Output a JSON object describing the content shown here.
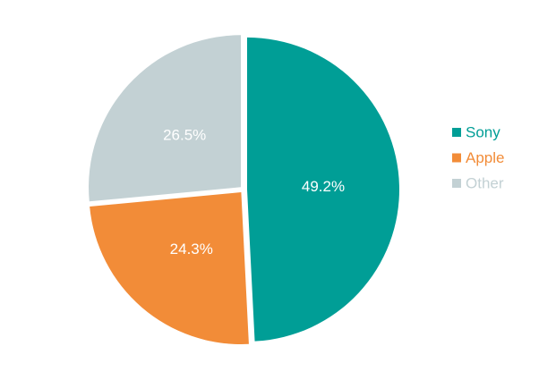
{
  "chart_data": {
    "type": "pie",
    "categories": [
      "Sony",
      "Apple",
      "Other"
    ],
    "values": [
      49.2,
      24.3,
      26.5
    ],
    "value_labels": [
      "49.2%",
      "24.3%",
      "26.5%"
    ],
    "colors": [
      "#009e96",
      "#f28c38",
      "#c3d1d4"
    ],
    "legend": "right"
  }
}
